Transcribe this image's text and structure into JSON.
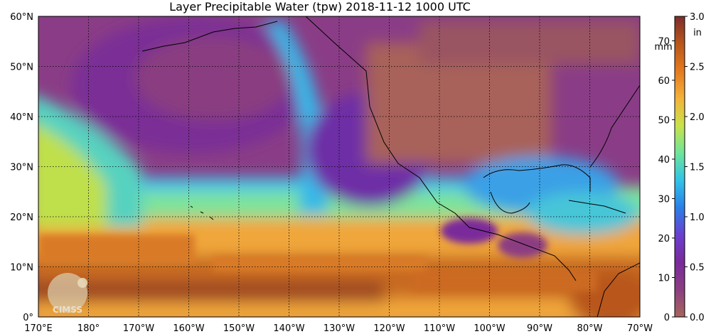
{
  "title": "Layer Precipitable Water (tpw)  2018-11-12 1000 UTC",
  "map": {
    "lon_labels": [
      "170°E",
      "180°",
      "170°W",
      "160°W",
      "150°W",
      "140°W",
      "130°W",
      "120°W",
      "110°W",
      "100°W",
      "90°W",
      "80°W",
      "70°W"
    ],
    "lat_labels": [
      "0°",
      "10°N",
      "20°N",
      "30°N",
      "40°N",
      "50°N",
      "60°N"
    ],
    "lon_range": [
      170,
      290
    ],
    "lat_range": [
      0,
      60
    ],
    "grid": true,
    "palette": [
      "#a7665a",
      "#8c3e82",
      "#7a2a9a",
      "#6a3fd0",
      "#2a7fe8",
      "#31c3e8",
      "#6ee59a",
      "#c9e24a",
      "#f3b23a",
      "#e57a1e",
      "#b8561a",
      "#7c2d2d"
    ]
  },
  "colorbar": {
    "mm_unit": "mm",
    "in_unit": "in",
    "mm_ticks": [
      "0",
      "10",
      "20",
      "30",
      "40",
      "50",
      "60",
      "70"
    ],
    "in_ticks": [
      "0.0",
      "0.5",
      "1.0",
      "1.5",
      "2.0",
      "2.5",
      "3.0"
    ],
    "mm_range": [
      0,
      76.2
    ]
  },
  "logo": {
    "text": "CIMSS"
  }
}
